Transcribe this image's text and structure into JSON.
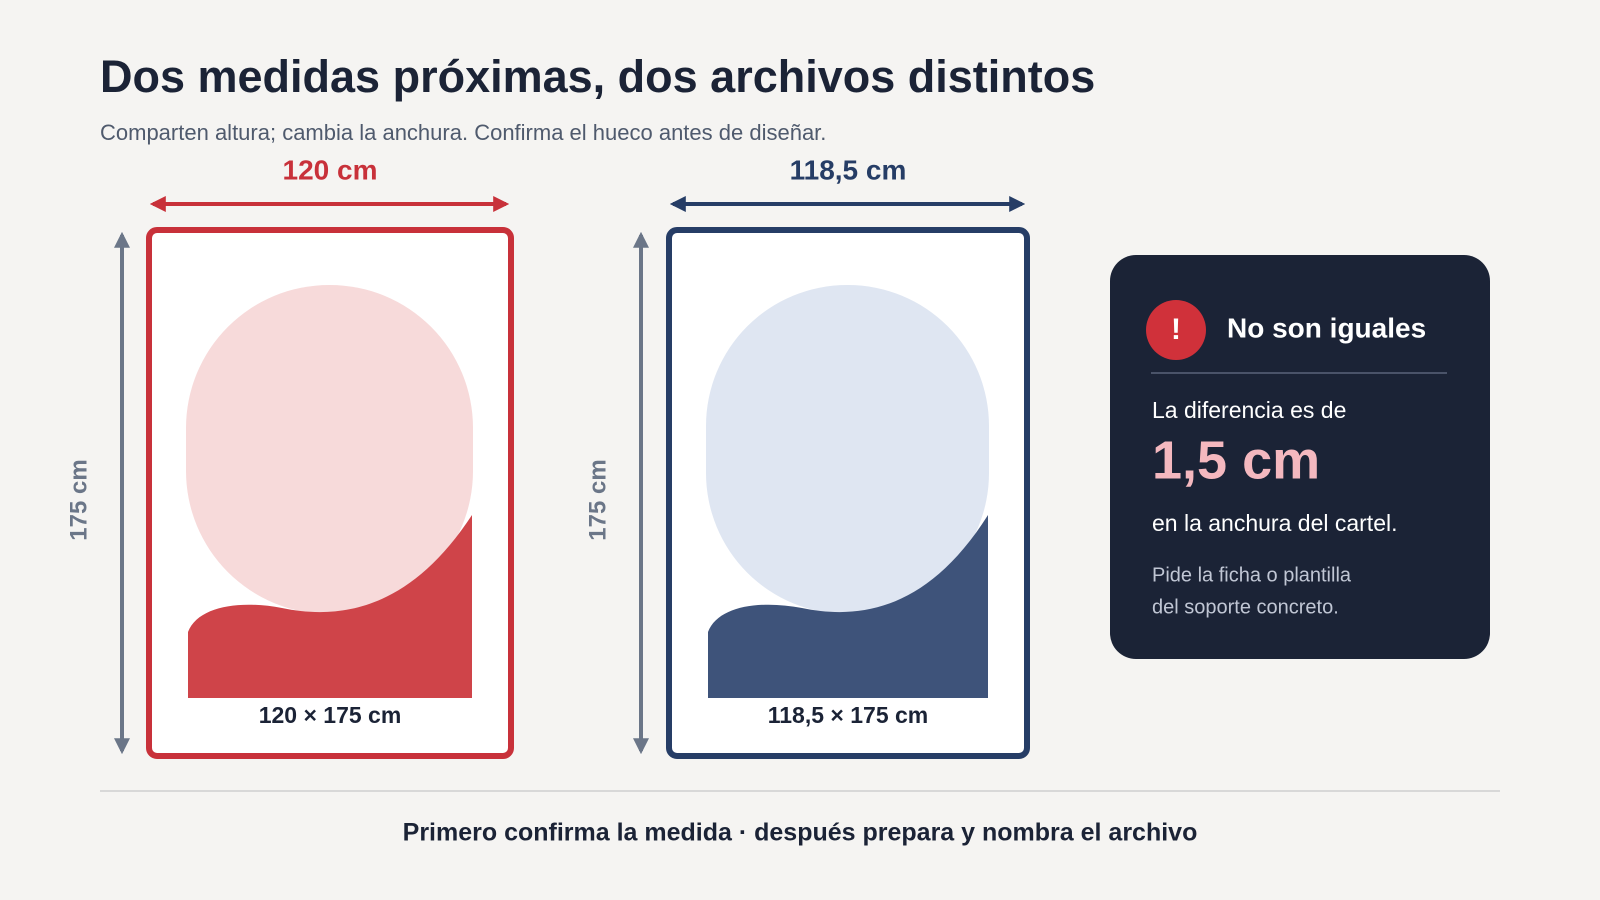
{
  "header": {
    "title": "Dos medidas próximas, dos archivos distintos",
    "subtitle": "Comparten altura; cambia la anchura. Confirma el hueco antes de diseñar."
  },
  "panels": [
    {
      "width_label": "120 cm",
      "height_label": "175 cm",
      "caption": "120 × 175 cm"
    },
    {
      "width_label": "118,5 cm",
      "height_label": "175 cm",
      "caption": "118,5 × 175 cm"
    }
  ],
  "card": {
    "icon": "!",
    "title": "No son iguales",
    "intro": "La diferencia es de",
    "difference": "1,5 cm",
    "after": "en la anchura del cartel.",
    "note": [
      "Pide la ficha o plantilla",
      "del soporte concreto."
    ]
  },
  "footer": "Primero confirma la medida · después prepara y nombra el archivo"
}
